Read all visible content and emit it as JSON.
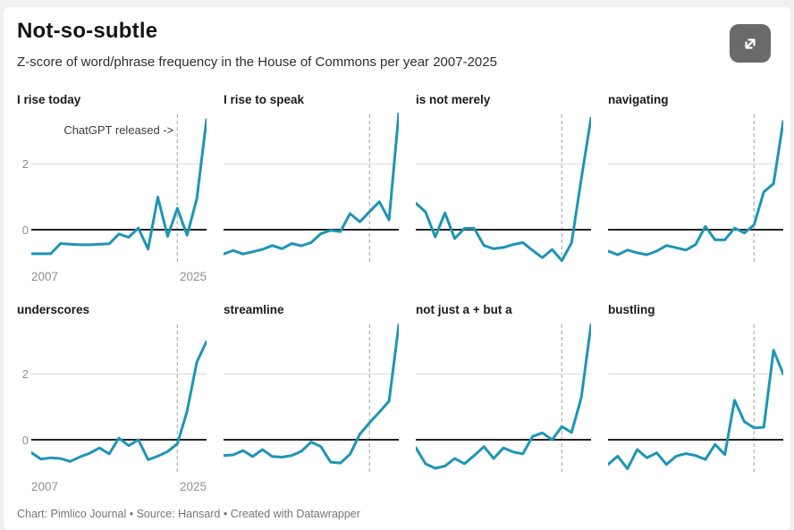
{
  "header": {
    "title": "Not-so-subtle",
    "subtitle": "Z-score of word/phrase frequency in the House of Commons per year 2007-2025",
    "expand_icon": "expand-diagonal-arrows"
  },
  "annotation": {
    "text": "ChatGPT released ->"
  },
  "chart_data": {
    "type": "line",
    "title": "Not-so-subtle",
    "subtitle": "Z-score of word/phrase frequency in the House of Commons per year 2007-2025",
    "x": [
      2007,
      2008,
      2009,
      2010,
      2011,
      2012,
      2013,
      2014,
      2015,
      2016,
      2017,
      2018,
      2019,
      2020,
      2021,
      2022,
      2023,
      2024,
      2025
    ],
    "x_tick_labels": [
      "2007",
      "2025"
    ],
    "y_tick_labels": [
      "2",
      "0"
    ],
    "y_ticks": [
      2,
      0
    ],
    "ylim": [
      -1.05,
      3.65
    ],
    "grid": "horizontal line at y=2 only, solid black baseline at y=0",
    "marker_line_year": 2022,
    "marker_label": "ChatGPT released ->",
    "line_color": "#1e95b5",
    "layout": "small multiples, 2 rows x 4 columns; axis labels only on first column",
    "series": [
      {
        "name": "I rise today",
        "values": [
          -0.73,
          -0.73,
          -0.73,
          -0.42,
          -0.44,
          -0.46,
          -0.46,
          -0.44,
          -0.43,
          -0.13,
          -0.23,
          0.05,
          -0.59,
          0.99,
          -0.2,
          0.65,
          -0.17,
          0.94,
          3.35
        ]
      },
      {
        "name": "I rise to speak",
        "values": [
          -0.74,
          -0.63,
          -0.74,
          -0.67,
          -0.6,
          -0.48,
          -0.58,
          -0.42,
          -0.49,
          -0.39,
          -0.12,
          -0.02,
          -0.06,
          0.49,
          0.24,
          0.55,
          0.85,
          0.3,
          3.55
        ]
      },
      {
        "name": "is not merely",
        "values": [
          0.81,
          0.54,
          -0.22,
          0.51,
          -0.27,
          0.04,
          0.04,
          -0.48,
          -0.58,
          -0.54,
          -0.45,
          -0.39,
          -0.63,
          -0.85,
          -0.6,
          -0.94,
          -0.4,
          1.55,
          3.4
        ]
      },
      {
        "name": "navigating",
        "values": [
          -0.65,
          -0.76,
          -0.62,
          -0.7,
          -0.76,
          -0.65,
          -0.48,
          -0.55,
          -0.62,
          -0.45,
          0.1,
          -0.31,
          -0.31,
          0.05,
          -0.1,
          0.15,
          1.15,
          1.4,
          3.3
        ]
      },
      {
        "name": "underscores",
        "values": [
          -0.39,
          -0.59,
          -0.55,
          -0.57,
          -0.66,
          -0.52,
          -0.41,
          -0.25,
          -0.43,
          0.05,
          -0.18,
          0.0,
          -0.61,
          -0.5,
          -0.36,
          -0.12,
          0.87,
          2.36,
          2.99
        ]
      },
      {
        "name": "streamline",
        "values": [
          -0.48,
          -0.46,
          -0.33,
          -0.51,
          -0.3,
          -0.51,
          -0.53,
          -0.48,
          -0.35,
          -0.07,
          -0.21,
          -0.68,
          -0.71,
          -0.44,
          0.17,
          0.52,
          0.84,
          1.17,
          3.5
        ]
      },
      {
        "name": "not just a + but a",
        "values": [
          -0.24,
          -0.73,
          -0.87,
          -0.8,
          -0.57,
          -0.73,
          -0.48,
          -0.21,
          -0.57,
          -0.25,
          -0.37,
          -0.43,
          0.1,
          0.21,
          0.0,
          0.4,
          0.22,
          1.28,
          3.5
        ]
      },
      {
        "name": "bustling",
        "values": [
          -0.75,
          -0.5,
          -0.88,
          -0.3,
          -0.55,
          -0.4,
          -0.75,
          -0.5,
          -0.42,
          -0.48,
          -0.6,
          -0.14,
          -0.45,
          1.2,
          0.55,
          0.36,
          0.38,
          2.72,
          2.0
        ]
      }
    ]
  },
  "footer": {
    "text": "Chart: Pimlico Journal • Source: Hansard • Created with Datawrapper"
  },
  "colors": {
    "line": "#1e95b5",
    "zero_line": "#222222",
    "gridline": "#e0e0e0",
    "dashed_marker": "#b5b5b5",
    "axis_label": "#8f8f8f",
    "card_bg": "#ffffff",
    "page_bg": "#f0f0f1",
    "expand_button_bg": "#6a6a6a"
  }
}
